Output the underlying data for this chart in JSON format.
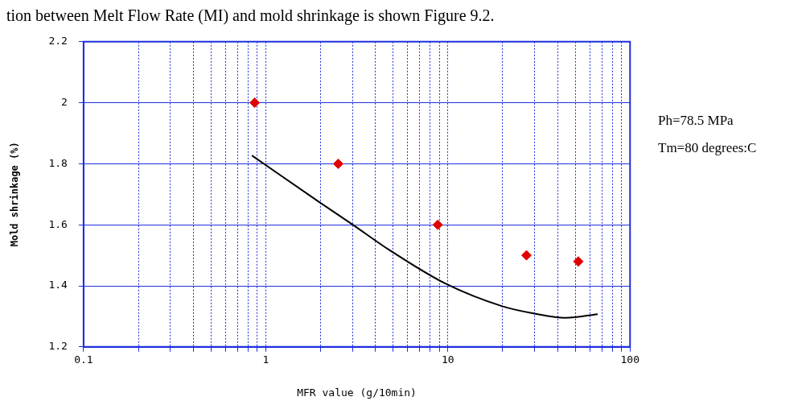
{
  "chart_data": {
    "type": "scatter",
    "title": "tion between Melt Flow Rate (MI) and mold shrinkage is shown Figure 9.2.",
    "xlabel": "MFR value (g/10min)",
    "ylabel": "Mold shrinkage (%)",
    "log": "x",
    "series": [
      {
        "type": "scatter",
        "marker": "diamond",
        "color": "#e00000",
        "x": [
          0.87,
          2.5,
          8.8,
          27,
          52
        ],
        "values": [
          2.0,
          1.8,
          1.6,
          1.5,
          1.48
        ]
      },
      {
        "type": "line",
        "marker": "none",
        "color": "#000000",
        "x": [
          0.84,
          1.95,
          2.93,
          4.84,
          9.8,
          19.9,
          29.9,
          44.2,
          66.4
        ],
        "values": [
          1.827,
          1.676,
          1.605,
          1.515,
          1.406,
          1.333,
          1.309,
          1.295,
          1.307
        ]
      }
    ],
    "xlim": [
      0.1,
      100
    ],
    "ylim": [
      1.2,
      2.2
    ],
    "xticks": [
      0.1,
      {
        "value": 0.2,
        "label": null
      },
      {
        "value": 0.3,
        "label": null
      },
      {
        "value": 0.4,
        "label": null
      },
      {
        "value": 0.5,
        "label": null
      },
      {
        "value": 0.6,
        "label": null
      },
      {
        "value": 0.7,
        "label": null
      },
      {
        "value": 0.8,
        "label": null
      },
      {
        "value": 0.9,
        "label": null
      },
      1,
      {
        "value": 2,
        "label": null
      },
      {
        "value": 3,
        "label": null
      },
      {
        "value": 4,
        "label": null
      },
      {
        "value": 5,
        "label": null
      },
      {
        "value": 6,
        "label": null
      },
      {
        "value": 7,
        "label": null
      },
      {
        "value": 8,
        "label": null
      },
      {
        "value": 9,
        "label": null
      },
      10,
      {
        "value": 20,
        "label": null
      },
      {
        "value": 30,
        "label": null
      },
      {
        "value": 40,
        "label": null
      },
      {
        "value": 50,
        "label": null
      },
      {
        "value": 60,
        "label": null
      },
      {
        "value": 70,
        "label": null
      },
      {
        "value": 80,
        "label": null
      },
      {
        "value": 90,
        "label": null
      },
      100
    ],
    "yticks": [
      1.2,
      1.4,
      1.6,
      1.8,
      2,
      2.2
    ],
    "grid": true,
    "legend": false,
    "annotations": [
      "Ph=78.5 MPa",
      "Tm=80 degrees:C"
    ]
  }
}
